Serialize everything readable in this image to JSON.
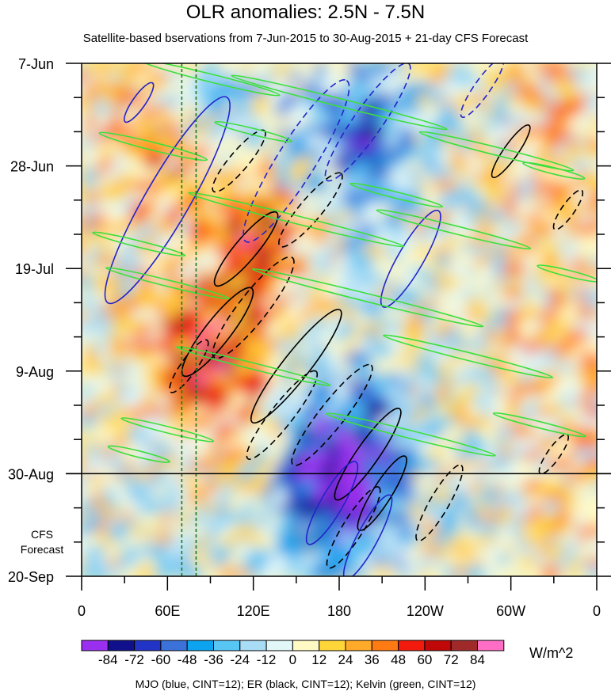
{
  "chart_data": {
    "type": "heatmap",
    "title": "OLR anomalies: 2.5N - 7.5N",
    "subtitle": "Satellite-based bservations from 7-Jun-2015 to 30-Aug-2015 + 21-day CFS Forecast",
    "x_ticks": [
      {
        "lon": 0,
        "label": "0"
      },
      {
        "lon": 60,
        "label": "60E"
      },
      {
        "lon": 120,
        "label": "120E"
      },
      {
        "lon": 180,
        "label": "180"
      },
      {
        "lon": 240,
        "label": "120W"
      },
      {
        "lon": 300,
        "label": "60W"
      },
      {
        "lon": 360,
        "label": "0"
      }
    ],
    "y_ticks": [
      {
        "day": 0,
        "label": "7-Jun"
      },
      {
        "day": 21,
        "label": "28-Jun"
      },
      {
        "day": 42,
        "label": "19-Jul"
      },
      {
        "day": 63,
        "label": "9-Aug"
      },
      {
        "day": 84,
        "label": "30-Aug"
      },
      {
        "day": 105,
        "label": "20-Sep"
      }
    ],
    "xlim": [
      0,
      360
    ],
    "ylim_days": [
      0,
      105
    ],
    "forecast_start_day": 84,
    "forecast_label": "CFS Forecast",
    "colorbar": {
      "levels": [
        "-84",
        "-72",
        "-60",
        "-48",
        "-36",
        "-24",
        "-12",
        "0",
        "12",
        "24",
        "36",
        "48",
        "60",
        "72",
        "84"
      ],
      "colors": [
        "#9b2ff0",
        "#10108c",
        "#2234c6",
        "#3a72da",
        "#0ca4ee",
        "#58c6f5",
        "#a9dcf5",
        "#e1f7f8",
        "#fff9c4",
        "#ffd63a",
        "#ffaa28",
        "#ff7a12",
        "#f11a0c",
        "#c00808",
        "#a02a2a",
        "#ff6ec4"
      ],
      "units": "W/m^2"
    },
    "contour_legend": "MJO (blue, CINT=12); ER (black, CINT=12); Kelvin (green, CINT=12)",
    "reference_lines_lon": [
      70,
      80
    ],
    "features": [
      {
        "kind": "positive",
        "lon": 58,
        "day": 18,
        "value": 48
      },
      {
        "kind": "positive",
        "lon": 130,
        "day": 37,
        "value": 60
      },
      {
        "kind": "positive",
        "lon": 100,
        "day": 64,
        "value": 36
      },
      {
        "kind": "positive",
        "lon": 80,
        "day": 58,
        "value": 36
      },
      {
        "kind": "negative",
        "lon": 190,
        "day": 80,
        "value": -60
      },
      {
        "kind": "negative",
        "lon": 180,
        "day": 90,
        "value": -48
      },
      {
        "kind": "negative",
        "lon": 200,
        "day": 16,
        "value": -48
      },
      {
        "kind": "negative",
        "lon": 95,
        "day": 10,
        "value": -36
      }
    ]
  }
}
